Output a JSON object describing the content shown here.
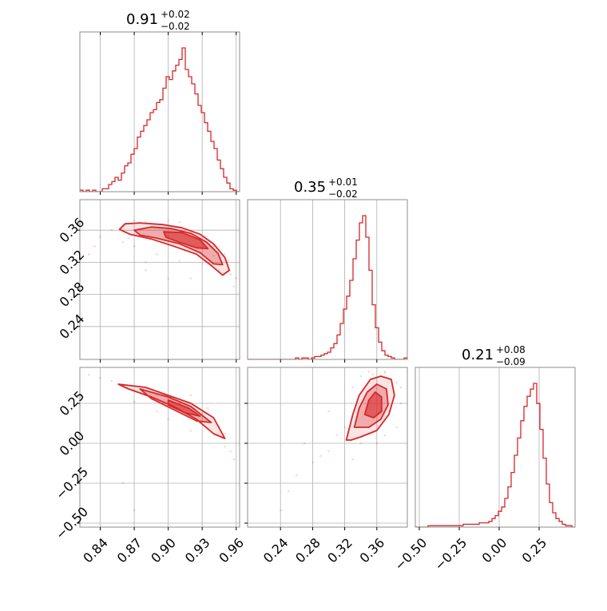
{
  "colors": {
    "accent": "#d62728",
    "grid": "#b0b0b0",
    "axis": "#808080"
  },
  "parameters": [
    {
      "median": "0.91",
      "upper": "+0.02",
      "lower": "−0.02"
    },
    {
      "median": "0.35",
      "upper": "+0.01",
      "lower": "−0.02"
    },
    {
      "median": "0.21",
      "upper": "+0.08",
      "lower": "−0.09"
    }
  ],
  "chart_data": {
    "type": "corner",
    "grid": true,
    "axes": [
      {
        "range": [
          0.822,
          0.963
        ],
        "ticks": [
          0.84,
          0.87,
          0.9,
          0.93,
          0.96
        ],
        "tick_labels": [
          "0.84",
          "0.87",
          "0.90",
          "0.93",
          "0.96"
        ]
      },
      {
        "range": [
          0.199,
          0.398
        ],
        "ticks": [
          0.24,
          0.28,
          0.32,
          0.36
        ],
        "tick_labels": [
          "0.24",
          "0.28",
          "0.32",
          "0.36"
        ]
      },
      {
        "range": [
          -0.525,
          0.475
        ],
        "ticks": [
          -0.5,
          -0.25,
          0.0,
          0.25
        ],
        "tick_labels": [
          "−0.50",
          "−0.25",
          "0.00",
          "0.25"
        ]
      }
    ],
    "histograms": [
      {
        "param": 0,
        "density": [
          0.01,
          0.0,
          0.01,
          0.0,
          0.01,
          0.0,
          0.0,
          0.02,
          0.02,
          0.05,
          0.07,
          0.1,
          0.08,
          0.13,
          0.18,
          0.2,
          0.26,
          0.3,
          0.38,
          0.42,
          0.46,
          0.5,
          0.55,
          0.57,
          0.62,
          0.64,
          0.72,
          0.8,
          0.78,
          0.84,
          0.88,
          0.92,
          1.0,
          0.85,
          0.8,
          0.75,
          0.68,
          0.6,
          0.55,
          0.48,
          0.42,
          0.35,
          0.3,
          0.22,
          0.16,
          0.1,
          0.06,
          0.02,
          0.01,
          0.0
        ]
      },
      {
        "param": 1,
        "density": [
          0.0,
          0.0,
          0.0,
          0.0,
          0.0,
          0.0,
          0.0,
          0.0,
          0.0,
          0.0,
          0.0,
          0.0,
          0.0,
          0.0,
          0.0,
          0.01,
          0.0,
          0.01,
          0.01,
          0.0,
          0.01,
          0.02,
          0.02,
          0.03,
          0.04,
          0.05,
          0.08,
          0.11,
          0.17,
          0.25,
          0.35,
          0.44,
          0.55,
          0.7,
          0.83,
          0.95,
          1.0,
          0.85,
          0.62,
          0.38,
          0.22,
          0.12,
          0.06,
          0.03,
          0.02,
          0.01,
          0.0,
          0.0,
          0.0,
          0.01
        ]
      },
      {
        "param": 2,
        "density": [
          0.0,
          0.0,
          0.0,
          0.0,
          0.01,
          0.01,
          0.01,
          0.01,
          0.01,
          0.01,
          0.01,
          0.01,
          0.01,
          0.01,
          0.01,
          0.02,
          0.02,
          0.02,
          0.02,
          0.02,
          0.03,
          0.03,
          0.03,
          0.04,
          0.06,
          0.08,
          0.11,
          0.14,
          0.2,
          0.28,
          0.38,
          0.5,
          0.62,
          0.74,
          0.84,
          0.91,
          0.96,
          1.0,
          0.86,
          0.68,
          0.48,
          0.3,
          0.17,
          0.1,
          0.06,
          0.04,
          0.02,
          0.01,
          0.01,
          0.0
        ]
      }
    ],
    "pairs": [
      {
        "x_param": 0,
        "y_param": 1,
        "levels": [
          [
            [
              0.857,
              0.361
            ],
            [
              0.862,
              0.368
            ],
            [
              0.875,
              0.369
            ],
            [
              0.895,
              0.367
            ],
            [
              0.912,
              0.363
            ],
            [
              0.928,
              0.355
            ],
            [
              0.94,
              0.343
            ],
            [
              0.95,
              0.326
            ],
            [
              0.954,
              0.31
            ],
            [
              0.948,
              0.304
            ],
            [
              0.938,
              0.316
            ],
            [
              0.925,
              0.33
            ],
            [
              0.905,
              0.34
            ],
            [
              0.885,
              0.349
            ],
            [
              0.866,
              0.355
            ]
          ],
          [
            [
              0.87,
              0.36
            ],
            [
              0.885,
              0.364
            ],
            [
              0.903,
              0.362
            ],
            [
              0.92,
              0.356
            ],
            [
              0.934,
              0.345
            ],
            [
              0.944,
              0.331
            ],
            [
              0.948,
              0.317
            ],
            [
              0.94,
              0.318
            ],
            [
              0.928,
              0.332
            ],
            [
              0.91,
              0.343
            ],
            [
              0.89,
              0.35
            ],
            [
              0.875,
              0.354
            ]
          ],
          [
            [
              0.896,
              0.358
            ],
            [
              0.912,
              0.357
            ],
            [
              0.928,
              0.348
            ],
            [
              0.935,
              0.337
            ],
            [
              0.925,
              0.338
            ],
            [
              0.91,
              0.345
            ],
            [
              0.898,
              0.351
            ]
          ]
        ],
        "samples": [
          [
            0.84,
            0.352
          ],
          [
            0.85,
            0.36
          ],
          [
            0.86,
            0.366
          ],
          [
            0.88,
            0.37
          ],
          [
            0.9,
            0.366
          ],
          [
            0.92,
            0.356
          ],
          [
            0.94,
            0.34
          ],
          [
            0.953,
            0.322
          ],
          [
            0.96,
            0.3
          ],
          [
            0.958,
            0.29
          ],
          [
            0.87,
            0.34
          ],
          [
            0.89,
            0.33
          ],
          [
            0.91,
            0.322
          ],
          [
            0.93,
            0.318
          ],
          [
            0.945,
            0.31
          ],
          [
            0.83,
            0.33
          ],
          [
            0.9,
            0.3
          ],
          [
            0.92,
            0.3
          ],
          [
            0.88,
            0.32
          ],
          [
            0.86,
            0.345
          ],
          [
            0.95,
            0.33
          ],
          [
            0.94,
            0.328
          ],
          [
            0.955,
            0.305
          ],
          [
            0.87,
            0.372
          ],
          [
            0.9,
            0.372
          ],
          [
            0.91,
            0.37
          ],
          [
            0.835,
            0.34
          ],
          [
            0.865,
            0.35
          ],
          [
            0.88,
            0.31
          ]
        ]
      },
      {
        "x_param": 0,
        "y_param": 2,
        "levels": [
          [
            [
              0.856,
              0.37
            ],
            [
              0.88,
              0.35
            ],
            [
              0.9,
              0.3
            ],
            [
              0.92,
              0.25
            ],
            [
              0.94,
              0.16
            ],
            [
              0.95,
              0.03
            ],
            [
              0.94,
              0.06
            ],
            [
              0.925,
              0.15
            ],
            [
              0.905,
              0.23
            ],
            [
              0.885,
              0.29
            ],
            [
              0.865,
              0.34
            ]
          ],
          [
            [
              0.875,
              0.34
            ],
            [
              0.9,
              0.29
            ],
            [
              0.92,
              0.23
            ],
            [
              0.938,
              0.13
            ],
            [
              0.925,
              0.14
            ],
            [
              0.905,
              0.21
            ],
            [
              0.885,
              0.28
            ]
          ],
          [
            [
              0.9,
              0.27
            ],
            [
              0.918,
              0.22
            ],
            [
              0.928,
              0.17
            ],
            [
              0.915,
              0.19
            ],
            [
              0.9,
              0.24
            ]
          ]
        ],
        "samples": [
          [
            0.83,
            0.43
          ],
          [
            0.84,
            0.41
          ],
          [
            0.85,
            0.39
          ],
          [
            0.86,
            0.36
          ],
          [
            0.87,
            0.33
          ],
          [
            0.89,
            0.3
          ],
          [
            0.91,
            0.25
          ],
          [
            0.93,
            0.19
          ],
          [
            0.95,
            0.06
          ],
          [
            0.955,
            -0.05
          ],
          [
            0.958,
            -0.1
          ],
          [
            0.87,
            0.26
          ],
          [
            0.9,
            0.15
          ],
          [
            0.92,
            0.08
          ],
          [
            0.86,
            -0.25
          ],
          [
            0.87,
            -0.42
          ],
          [
            0.89,
            0.2
          ],
          [
            0.88,
            0.32
          ],
          [
            0.945,
            0.1
          ],
          [
            0.92,
            0.3
          ],
          [
            0.95,
            -0.02
          ],
          [
            0.935,
            0.22
          ]
        ]
      },
      {
        "x_param": 1,
        "y_param": 2,
        "levels": [
          [
            [
              0.322,
              0.02
            ],
            [
              0.33,
              0.18
            ],
            [
              0.338,
              0.3
            ],
            [
              0.352,
              0.4
            ],
            [
              0.365,
              0.42
            ],
            [
              0.378,
              0.4
            ],
            [
              0.382,
              0.3
            ],
            [
              0.375,
              0.18
            ],
            [
              0.36,
              0.08
            ],
            [
              0.34,
              0.04
            ],
            [
              0.328,
              0.02
            ]
          ],
          [
            [
              0.332,
              0.1
            ],
            [
              0.338,
              0.22
            ],
            [
              0.348,
              0.32
            ],
            [
              0.36,
              0.37
            ],
            [
              0.372,
              0.34
            ],
            [
              0.374,
              0.24
            ],
            [
              0.365,
              0.15
            ],
            [
              0.35,
              0.1
            ]
          ],
          [
            [
              0.345,
              0.18
            ],
            [
              0.35,
              0.27
            ],
            [
              0.358,
              0.32
            ],
            [
              0.366,
              0.29
            ],
            [
              0.366,
              0.2
            ],
            [
              0.356,
              0.16
            ]
          ]
        ],
        "samples": [
          [
            0.32,
            0.1
          ],
          [
            0.33,
            0.35
          ],
          [
            0.34,
            0.42
          ],
          [
            0.35,
            0.45
          ],
          [
            0.37,
            0.45
          ],
          [
            0.385,
            0.38
          ],
          [
            0.39,
            0.25
          ],
          [
            0.385,
            0.1
          ],
          [
            0.37,
            0.05
          ],
          [
            0.31,
            0.05
          ],
          [
            0.3,
            -0.05
          ],
          [
            0.28,
            -0.12
          ],
          [
            0.26,
            -0.2
          ],
          [
            0.25,
            -0.3
          ],
          [
            0.24,
            -0.42
          ],
          [
            0.29,
            -0.08
          ],
          [
            0.3,
            0.2
          ],
          [
            0.27,
            0.0
          ],
          [
            0.33,
            -0.1
          ],
          [
            0.36,
            0.0
          ],
          [
            0.355,
            0.43
          ],
          [
            0.34,
            0.0
          ],
          [
            0.37,
            0.44
          ],
          [
            0.39,
            0.35
          ]
        ]
      }
    ]
  }
}
